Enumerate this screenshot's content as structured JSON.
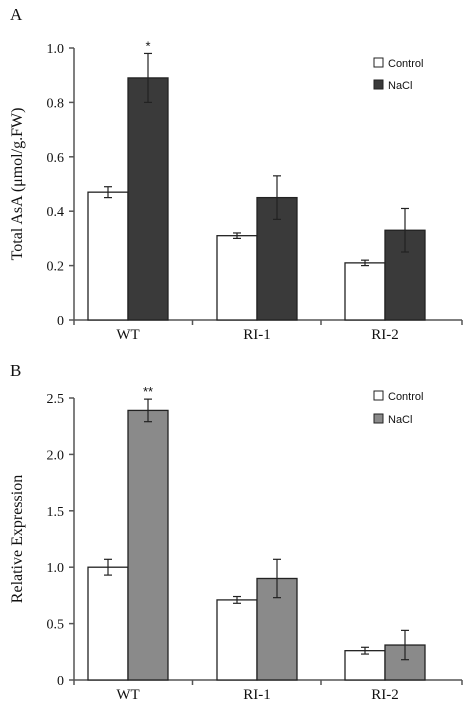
{
  "chart_data": [
    {
      "type": "bar",
      "panel": "A",
      "categories": [
        "WT",
        "RI-1",
        "RI-2"
      ],
      "ylabel": "Total  AsA (μmol/g.FW)",
      "ylim": [
        0,
        1.0
      ],
      "yticks": [
        "0",
        "0.2",
        "0.4",
        "0.6",
        "0.8",
        "1.0"
      ],
      "series": [
        {
          "name": "Control",
          "color": "#ffffff",
          "values": [
            0.47,
            0.31,
            0.21
          ],
          "errors": [
            0.02,
            0.01,
            0.01
          ]
        },
        {
          "name": "NaCl",
          "color": "#3a3a3a",
          "values": [
            0.89,
            0.45,
            0.33
          ],
          "errors": [
            0.09,
            0.08,
            0.08
          ]
        }
      ],
      "annotations": [
        {
          "category": "WT",
          "series": "NaCl",
          "text": "*"
        }
      ],
      "legend": "top-right"
    },
    {
      "type": "bar",
      "panel": "B",
      "categories": [
        "WT",
        "RI-1",
        "RI-2"
      ],
      "ylabel": "Relative Expression",
      "ylim": [
        0,
        2.5
      ],
      "yticks": [
        "0",
        "0.5",
        "1.0",
        "1.5",
        "2.0",
        "2.5"
      ],
      "series": [
        {
          "name": "Control",
          "color": "#ffffff",
          "values": [
            1.0,
            0.71,
            0.26
          ],
          "errors": [
            0.07,
            0.03,
            0.03
          ]
        },
        {
          "name": "NaCl",
          "color": "#8a8a8a",
          "values": [
            2.39,
            0.9,
            0.31
          ],
          "errors": [
            0.1,
            0.17,
            0.13
          ]
        }
      ],
      "annotations": [
        {
          "category": "WT",
          "series": "NaCl",
          "text": "**"
        }
      ],
      "legend": "top-right"
    }
  ]
}
